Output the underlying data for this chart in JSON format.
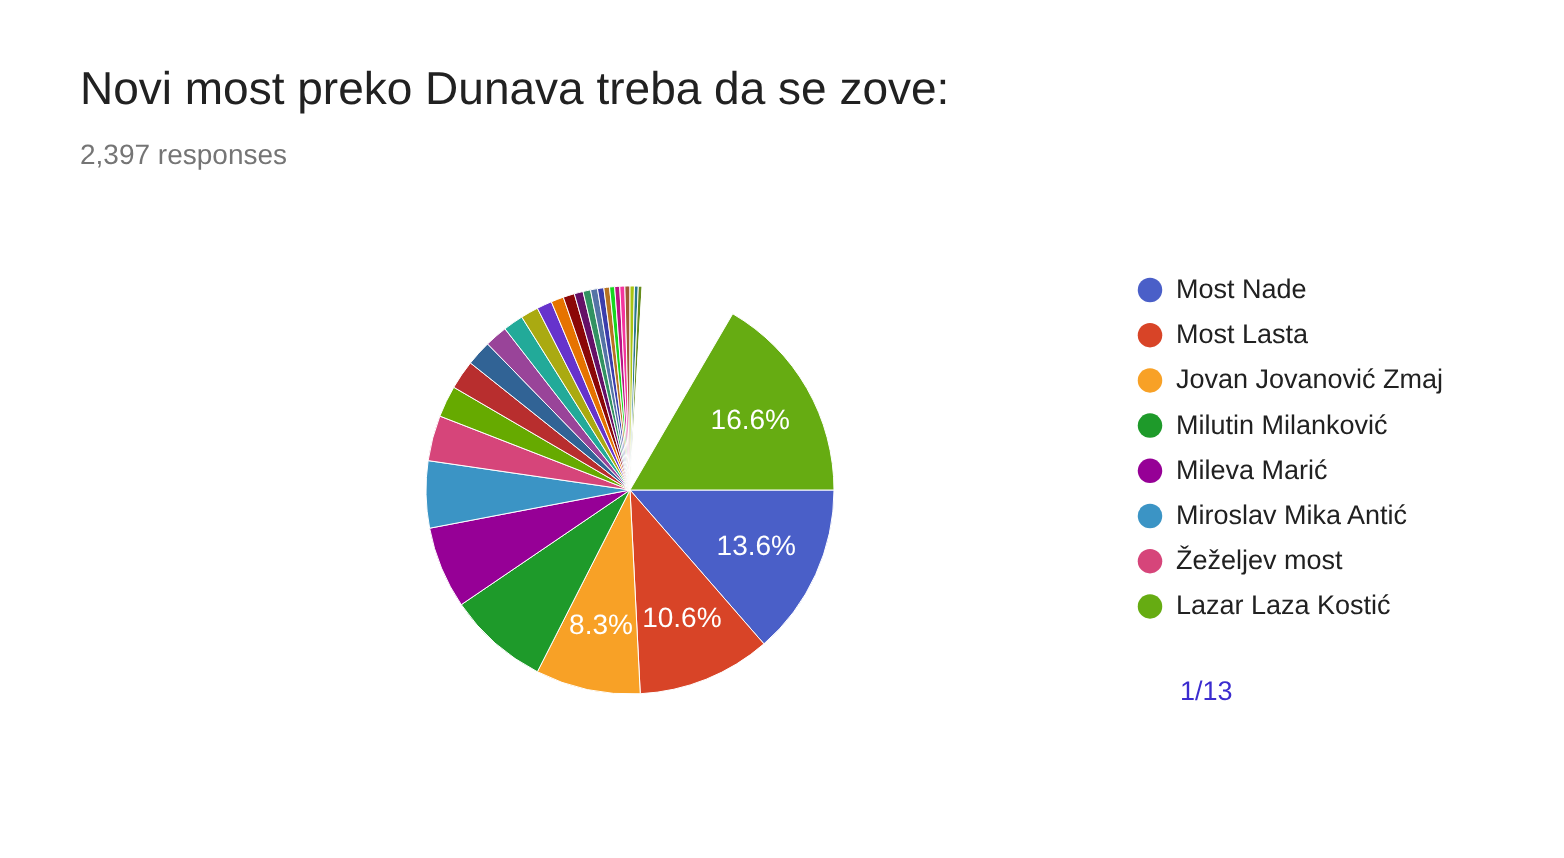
{
  "chart_data": {
    "type": "pie",
    "title": "Novi most preko Dunava treba da se zove:",
    "subtitle": "2,397 responses",
    "categories": [
      "Most Nade",
      "Most Lasta",
      "Jovan Jovanović Zmaj",
      "Milutin Milanković",
      "Mileva Marić",
      "Miroslav Mika Antić",
      "Žeželjev most",
      null,
      null,
      null,
      null,
      null,
      null,
      null,
      null,
      null,
      null,
      null,
      null,
      null,
      null,
      null,
      null,
      null,
      null,
      null,
      null,
      null,
      null,
      "Lazar Laza Kostić"
    ],
    "values": [
      13.6,
      10.6,
      8.3,
      8.0,
      6.5,
      5.3,
      3.6,
      2.5,
      2.3,
      2.0,
      1.8,
      1.6,
      1.4,
      1.2,
      1.0,
      0.9,
      0.7,
      0.6,
      0.55,
      0.5,
      0.45,
      0.4,
      0.4,
      0.4,
      0.4,
      0.35,
      0.3,
      0.3,
      7.45,
      16.6
    ],
    "colors": [
      "#4a5fc8",
      "#d84427",
      "#f8a126",
      "#1e9a2a",
      "#960096",
      "#3b94c5",
      "#d6457a",
      "#66aa00",
      "#b82e2e",
      "#316395",
      "#994499",
      "#22aa99",
      "#aaaa11",
      "#6633cc",
      "#e67300",
      "#8b0707",
      "#651067",
      "#329262",
      "#5574a6",
      "#3b3eac",
      "#b77322",
      "#16d620",
      "#b91383",
      "#f4359e",
      "#9c5935",
      "#a9c413",
      "#2a778d",
      "#668d1c",
      "#ffffff",
      "#66ac12"
    ],
    "value_labels": [
      "13.6%",
      "10.6%",
      "8.3%",
      null,
      null,
      null,
      null,
      null,
      null,
      null,
      null,
      null,
      null,
      null,
      null,
      null,
      null,
      null,
      null,
      null,
      null,
      null,
      null,
      null,
      null,
      null,
      null,
      null,
      null,
      "16.6%"
    ],
    "legend": "right",
    "annotations": [
      "1/13"
    ]
  }
}
